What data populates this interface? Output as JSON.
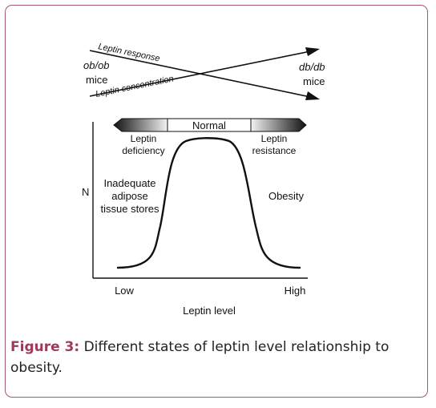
{
  "figure": {
    "arrows": {
      "response_label": "Leptin response",
      "concentration_label": "Leptin concentration",
      "left_genotype": "ob/ob",
      "left_suffix": "mice",
      "right_genotype": "db/db",
      "right_suffix": "mice"
    },
    "bar": {
      "center_label": "Normal",
      "left_label_line1": "Leptin",
      "left_label_line2": "deficiency",
      "right_label_line1": "Leptin",
      "right_label_line2": "resistance"
    },
    "plot": {
      "y_axis_label": "N",
      "left_region_line1": "Inadequate",
      "left_region_line2": "adipose",
      "left_region_line3": "tissue stores",
      "right_region_label": "Obesity",
      "x_low_label": "Low",
      "x_high_label": "High",
      "x_axis_label": "Leptin level"
    }
  },
  "caption": {
    "label": "Figure 3:",
    "text": " Different states of leptin level relationship to obesity."
  },
  "colors": {
    "border": "#a05a78",
    "caption_label": "#9c3a5e",
    "ink": "#111111"
  }
}
